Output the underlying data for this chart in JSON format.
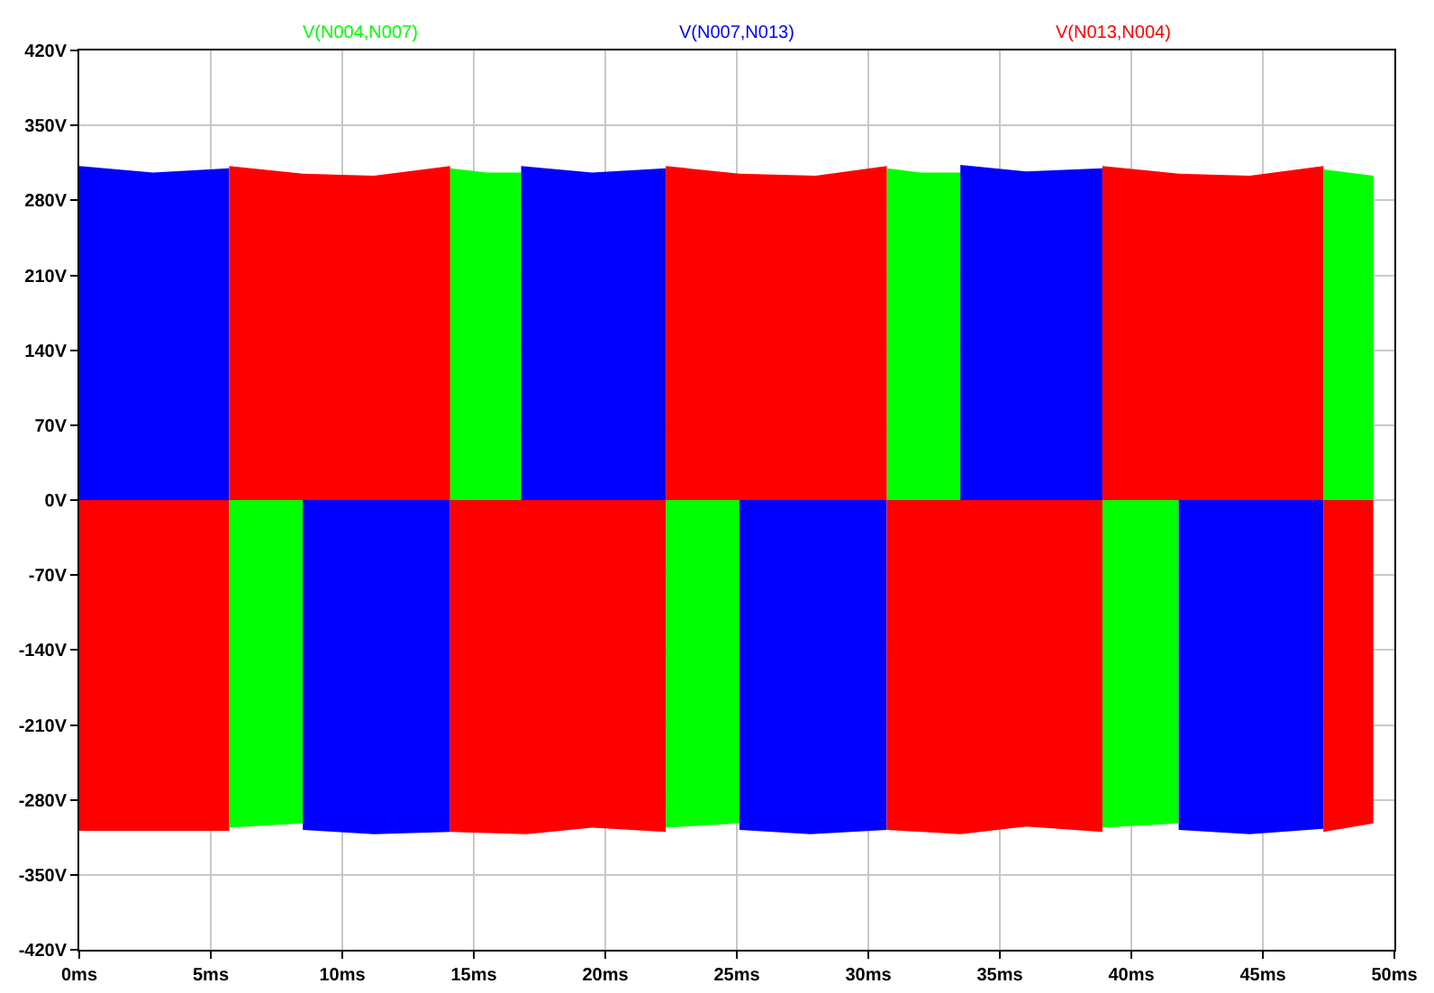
{
  "chart_data": {
    "type": "area",
    "legend": false,
    "grid": true,
    "xlim": [
      0,
      50
    ],
    "xticks": [
      {
        "value": 0,
        "label": "0ms"
      },
      {
        "value": 5,
        "label": "5ms"
      },
      {
        "value": 10,
        "label": "10ms"
      },
      {
        "value": 15,
        "label": "15ms"
      },
      {
        "value": 20,
        "label": "20ms"
      },
      {
        "value": 25,
        "label": "25ms"
      },
      {
        "value": 30,
        "label": "30ms"
      },
      {
        "value": 35,
        "label": "35ms"
      },
      {
        "value": 40,
        "label": "40ms"
      },
      {
        "value": 45,
        "label": "45ms"
      },
      {
        "value": 50,
        "label": "50ms"
      }
    ],
    "ylim": [
      -420,
      420
    ],
    "yticks": [
      {
        "value": -420,
        "label": "-420V"
      },
      {
        "value": -350,
        "label": "-350V"
      },
      {
        "value": -280,
        "label": "-280V"
      },
      {
        "value": -210,
        "label": "-210V"
      },
      {
        "value": -140,
        "label": "-140V"
      },
      {
        "value": -70,
        "label": "-70V"
      },
      {
        "value": 0,
        "label": "0V"
      },
      {
        "value": 70,
        "label": "70V"
      },
      {
        "value": 140,
        "label": "140V"
      },
      {
        "value": 210,
        "label": "210V"
      },
      {
        "value": 280,
        "label": "280V"
      },
      {
        "value": 350,
        "label": "350V"
      },
      {
        "value": 420,
        "label": "420V"
      }
    ],
    "series": [
      {
        "name": "V(N004,N007)",
        "color": "#00ff00",
        "x": [
          5.7,
          8.5,
          null,
          14.1,
          15.5,
          16.8,
          null,
          22.3,
          25.1,
          null,
          30.7,
          32,
          33.5,
          null,
          38.9,
          41.8,
          null,
          47.3,
          49.2
        ],
        "values": [
          -306,
          -302,
          null,
          310,
          306,
          306,
          null,
          -306,
          -302,
          null,
          310,
          306,
          306,
          null,
          -306,
          -302,
          null,
          309,
          303
        ]
      },
      {
        "name": "V(N007,N013)",
        "color": "#0000ff",
        "x": [
          0,
          2.8,
          5.7,
          null,
          8.5,
          11.2,
          14.1,
          null,
          16.8,
          19.5,
          22.3,
          null,
          25.1,
          27.8,
          30.7,
          null,
          33.5,
          36,
          38.9,
          null,
          41.8,
          44.5,
          47.3
        ],
        "values": [
          312,
          306,
          310,
          null,
          -308,
          -312,
          -310,
          null,
          312,
          306,
          310,
          null,
          -308,
          -312,
          -308,
          null,
          313,
          307,
          310,
          null,
          -308,
          -312,
          -307
        ]
      },
      {
        "name": "V(N013,N004)",
        "color": "#ff0000",
        "x": [
          0,
          5.7,
          null,
          5.7,
          8.5,
          11.2,
          14.1,
          null,
          14.1,
          17,
          19.5,
          22.3,
          null,
          22.3,
          25.1,
          28,
          30.7,
          null,
          30.7,
          33.5,
          36,
          38.9,
          null,
          38.9,
          41.8,
          44.5,
          47.3,
          null,
          47.3,
          49.2
        ],
        "values": [
          -309,
          -309,
          null,
          312,
          305,
          303,
          312,
          null,
          -310,
          -312,
          -306,
          -310,
          null,
          312,
          305,
          303,
          312,
          null,
          -308,
          -312,
          -305,
          -310,
          null,
          312,
          305,
          303,
          312,
          null,
          -310,
          -302
        ]
      }
    ]
  }
}
